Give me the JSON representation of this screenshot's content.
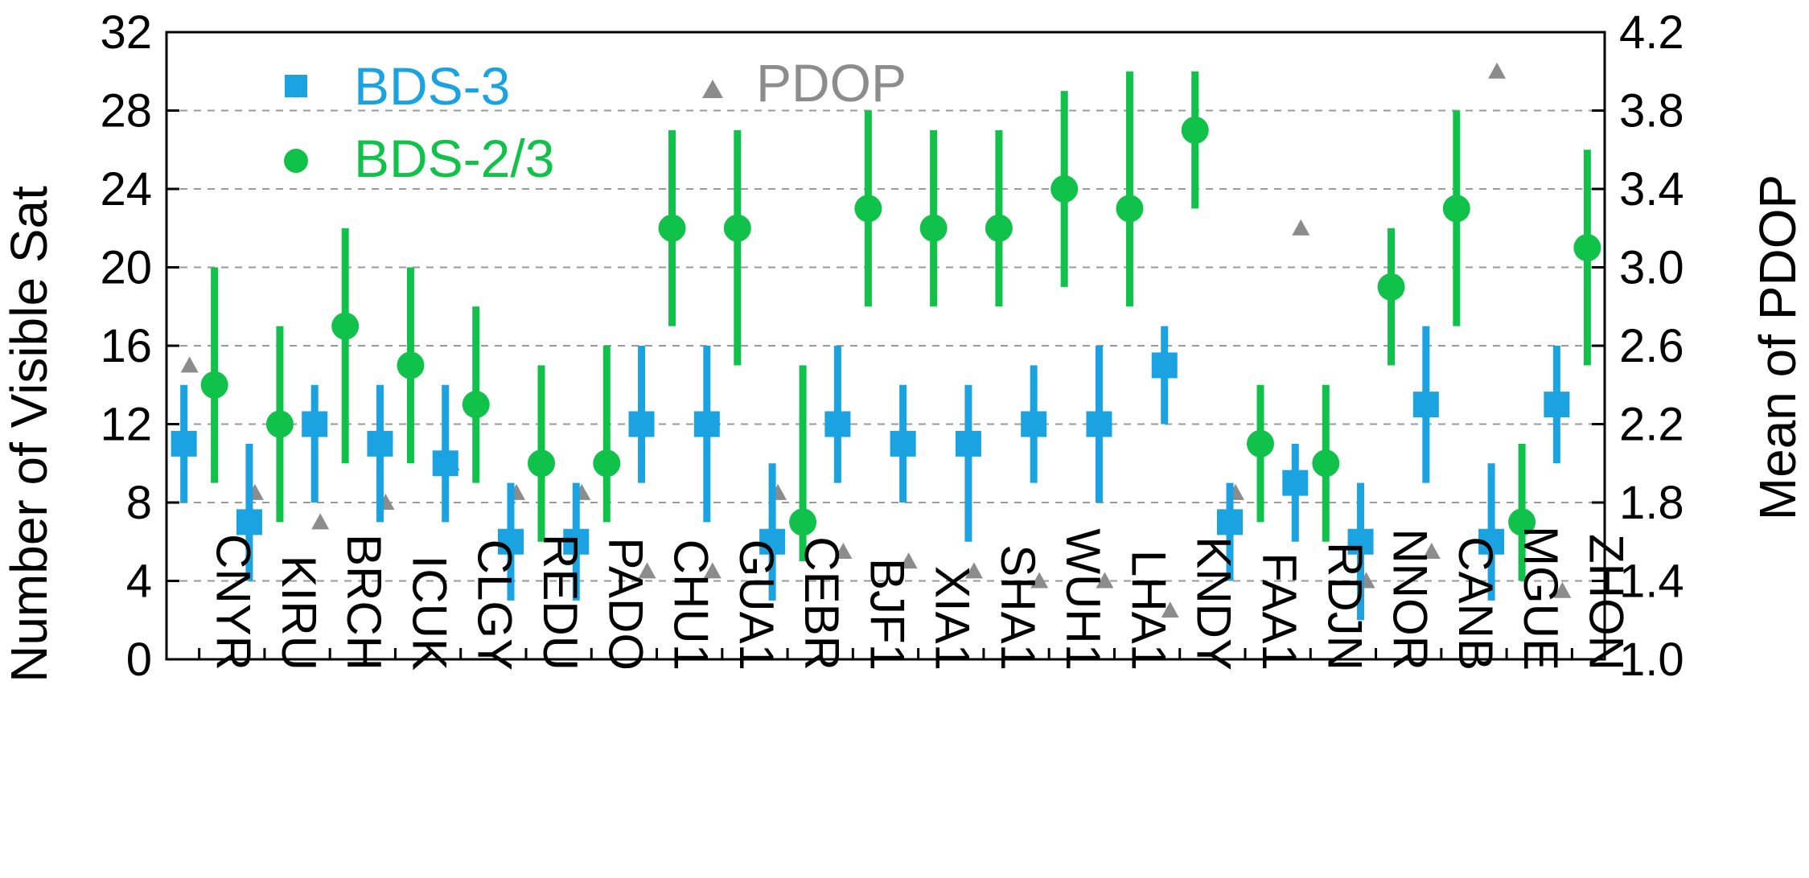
{
  "chart_data": {
    "type": "scatter",
    "categories": [
      "CNYR",
      "KIRU",
      "BRCH",
      "ICUK",
      "CLGY",
      "REDU",
      "PADO",
      "CHU1",
      "GUA1",
      "CEBR",
      "BJF1",
      "XIA1",
      "SHA1",
      "WUH1",
      "LHA1",
      "KNDY",
      "FAA1",
      "RDJN",
      "NNOR",
      "CANB",
      "MGUE",
      "ZHON"
    ],
    "series": [
      {
        "name": "BDS-3",
        "color": "#1aa3e0",
        "marker": "square",
        "axis": "left",
        "values": [
          11,
          7,
          12,
          11,
          10,
          6,
          6,
          12,
          12,
          6,
          12,
          11,
          11,
          12,
          12,
          15,
          7,
          9,
          6,
          13,
          6,
          13
        ],
        "low": [
          8,
          4,
          8,
          7,
          7,
          3,
          3,
          9,
          7,
          3,
          9,
          8,
          6,
          9,
          8,
          12,
          4,
          6,
          2,
          9,
          3,
          10
        ],
        "high": [
          14,
          11,
          14,
          14,
          14,
          9,
          9,
          16,
          16,
          10,
          16,
          14,
          14,
          15,
          16,
          17,
          9,
          11,
          9,
          17,
          10,
          16
        ]
      },
      {
        "name": "BDS-2/3",
        "color": "#11c24a",
        "marker": "circle",
        "axis": "left",
        "values": [
          14,
          12,
          17,
          15,
          13,
          10,
          10,
          22,
          22,
          7,
          23,
          22,
          22,
          24,
          23,
          27,
          11,
          10,
          19,
          23,
          7,
          21
        ],
        "low": [
          9,
          7,
          10,
          10,
          9,
          6,
          7,
          17,
          15,
          5,
          18,
          18,
          18,
          19,
          18,
          23,
          7,
          6,
          15,
          17,
          4,
          15
        ],
        "high": [
          20,
          17,
          22,
          20,
          18,
          15,
          16,
          27,
          27,
          15,
          28,
          27,
          27,
          29,
          30,
          30,
          14,
          14,
          22,
          28,
          11,
          26
        ]
      },
      {
        "name": "PDOP",
        "color": "#8c8c8c",
        "marker": "triangle",
        "axis": "right",
        "values": [
          2.5,
          1.85,
          1.7,
          1.8,
          2.0,
          1.85,
          1.85,
          1.45,
          1.45,
          1.85,
          1.55,
          1.5,
          1.45,
          1.4,
          1.4,
          1.25,
          1.85,
          3.2,
          1.4,
          1.55,
          4.0,
          1.35
        ]
      }
    ],
    "ylabel": "Number of Visible Sat",
    "ylabel_right": "Mean of PDOP",
    "ylim": [
      0,
      32
    ],
    "yticks": [
      "0",
      "4",
      "8",
      "12",
      "16",
      "20",
      "24",
      "28",
      "32"
    ],
    "ylim_right": [
      1.0,
      4.2
    ],
    "yticks_right": [
      "1.0",
      "1.4",
      "1.8",
      "2.2",
      "2.6",
      "3.0",
      "3.4",
      "3.8",
      "4.2"
    ],
    "grid": "horizontal dashed",
    "legend_placement": "top-left"
  }
}
